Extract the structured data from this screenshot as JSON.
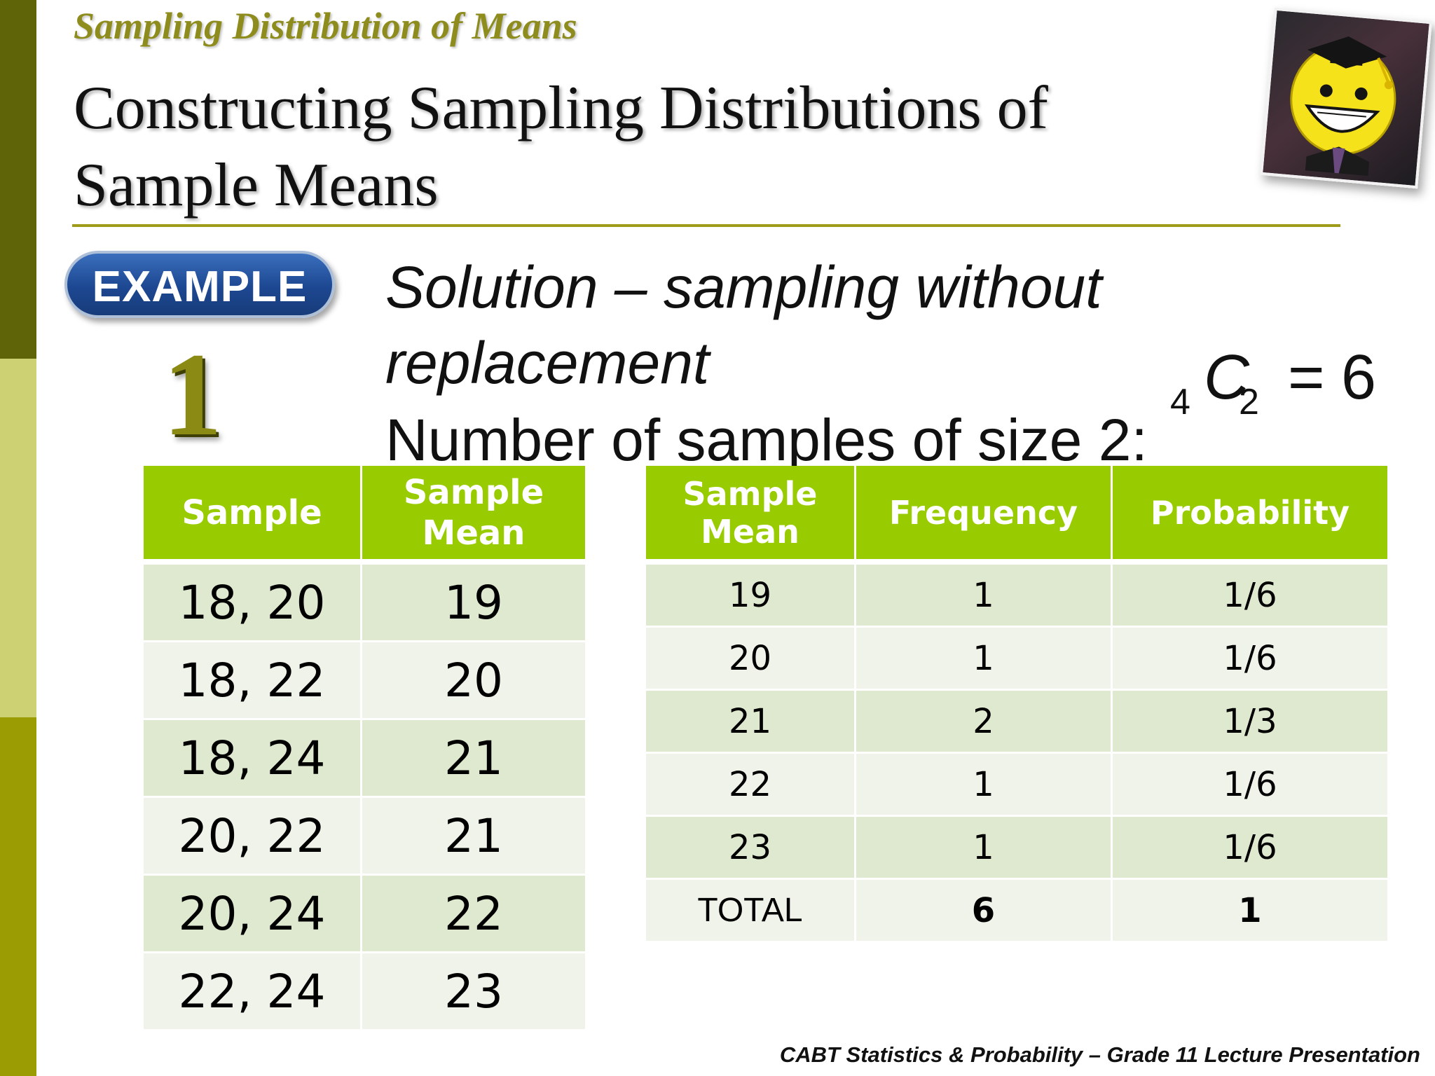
{
  "topic": "Sampling Distribution of Means",
  "title": "Constructing Sampling Distributions of Sample Means",
  "example": {
    "badge": "EXAMPLE",
    "number": "1"
  },
  "solution": {
    "line1": "Solution – sampling without",
    "line2": "replacement",
    "line3": "Number of samples of size 2:"
  },
  "formula": {
    "n": "4",
    "symbol": "C",
    "r": "2",
    "equals": "=",
    "value": "6"
  },
  "samples_table": {
    "headers": [
      "Sample",
      "Sample Mean"
    ],
    "rows": [
      [
        "18, 20",
        "19"
      ],
      [
        "18, 22",
        "20"
      ],
      [
        "18, 24",
        "21"
      ],
      [
        "20, 22",
        "21"
      ],
      [
        "20, 24",
        "22"
      ],
      [
        "22, 24",
        "23"
      ]
    ]
  },
  "distribution_table": {
    "headers": [
      "Sample Mean",
      "Frequency",
      "Probability"
    ],
    "rows": [
      [
        "19",
        "1",
        "1/6"
      ],
      [
        "20",
        "1",
        "1/6"
      ],
      [
        "21",
        "2",
        "1/3"
      ],
      [
        "22",
        "1",
        "1/6"
      ],
      [
        "23",
        "1",
        "1/6"
      ]
    ],
    "total": [
      "TOTAL",
      "6",
      "1"
    ]
  },
  "footer": "CABT Statistics & Probability – Grade 11 Lecture Presentation",
  "colors": {
    "sidebar": [
      "#5f6408",
      "#cdd173",
      "#9b9c04"
    ],
    "header_green": "#99cc00",
    "row_odd": "#dfe9cf",
    "row_even": "#eff3e9",
    "badge_blue": "#1d4791",
    "accent_olive": "#8d8c1c"
  }
}
